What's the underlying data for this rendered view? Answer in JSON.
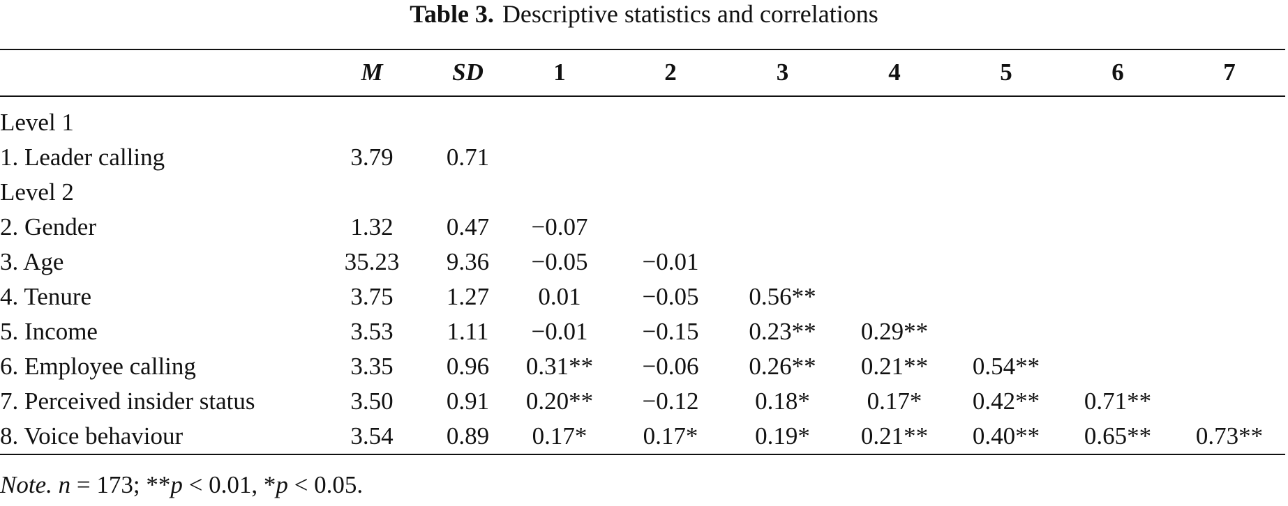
{
  "table": {
    "number": "Table 3.",
    "caption": "Descriptive statistics and correlations",
    "columns": [
      "",
      "M",
      "SD",
      "1",
      "2",
      "3",
      "4",
      "5",
      "6",
      "7"
    ],
    "rows": [
      [
        "Level 1",
        "",
        "",
        "",
        "",
        "",
        "",
        "",
        "",
        ""
      ],
      [
        "1. Leader calling",
        "3.79",
        "0.71",
        "",
        "",
        "",
        "",
        "",
        "",
        ""
      ],
      [
        "Level 2",
        "",
        "",
        "",
        "",
        "",
        "",
        "",
        "",
        ""
      ],
      [
        "2. Gender",
        "1.32",
        "0.47",
        "−0.07",
        "",
        "",
        "",
        "",
        "",
        ""
      ],
      [
        "3. Age",
        "35.23",
        "9.36",
        "−0.05",
        "−0.01",
        "",
        "",
        "",
        "",
        ""
      ],
      [
        "4. Tenure",
        "3.75",
        "1.27",
        "0.01",
        "−0.05",
        "0.56**",
        "",
        "",
        "",
        ""
      ],
      [
        "5. Income",
        "3.53",
        "1.11",
        "−0.01",
        "−0.15",
        "0.23**",
        "0.29**",
        "",
        "",
        ""
      ],
      [
        "6. Employee calling",
        "3.35",
        "0.96",
        "0.31**",
        "−0.06",
        "0.26**",
        "0.21**",
        "0.54**",
        "",
        ""
      ],
      [
        "7. Perceived insider status",
        "3.50",
        "0.91",
        "0.20**",
        "−0.12",
        "0.18*",
        "0.17*",
        "0.42**",
        "0.71**",
        ""
      ],
      [
        "8. Voice behaviour",
        "3.54",
        "0.89",
        "0.17*",
        "0.17*",
        "0.19*",
        "0.21**",
        "0.40**",
        "0.65**",
        "0.73**"
      ]
    ]
  },
  "note": {
    "label": "Note.",
    "n_symbol": "n",
    "n_text": " = 173; **",
    "p1_symbol": "p",
    "p1_text": " < 0.01, *",
    "p2_symbol": "p",
    "p2_text": " < 0.05."
  }
}
